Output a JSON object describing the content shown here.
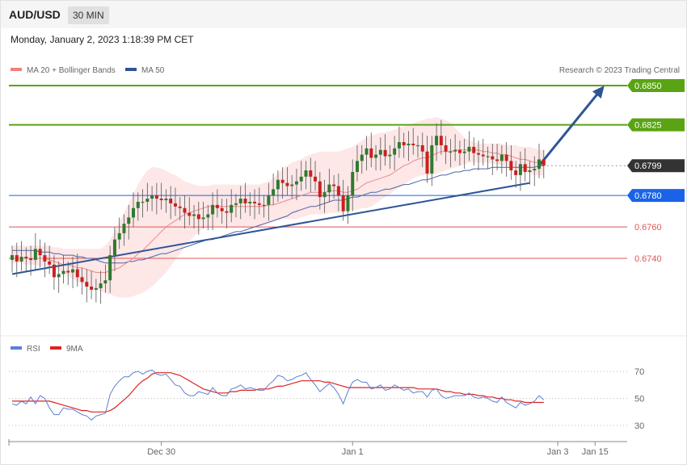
{
  "header": {
    "symbol": "AUD/USD",
    "timeframe": "30 MIN"
  },
  "datetime": "Monday, January 2, 2023 1:18:39 PM CET",
  "copyright": "Research © 2023 Trading Central",
  "colors": {
    "candle_up": "#2f7a2f",
    "candle_down": "#cc1f1f",
    "bollinger": "#fde3e3",
    "ma20": "#ee8a8a",
    "ma50": "#4a66a6",
    "resistance": "#5aa312",
    "support": "#1a63e8",
    "pivot": "#e05555",
    "current": "#333333",
    "trendline": "#2e5596",
    "rsi": "#5b7fd4",
    "rsi_ma": "#dd2222"
  },
  "chart_data": [
    {
      "type": "candlestick",
      "title": "",
      "ylim": [
        0.6722,
        0.6862
      ],
      "legend": [
        {
          "name": "MA 20 + Bollinger Bands",
          "color": "#f08080"
        },
        {
          "name": "MA 50",
          "color": "#2e5596"
        }
      ],
      "levels": [
        {
          "value": 0.685,
          "label": "0.6850",
          "kind": "resistance"
        },
        {
          "value": 0.6825,
          "label": "0.6825",
          "kind": "resistance"
        },
        {
          "value": 0.6799,
          "label": "0.6799",
          "kind": "current"
        },
        {
          "value": 0.678,
          "label": "0.6780",
          "kind": "support"
        },
        {
          "value": 0.676,
          "label": "0.6760",
          "kind": "pivot"
        },
        {
          "value": 0.674,
          "label": "0.6740",
          "kind": "pivot"
        }
      ],
      "trendline": {
        "start": [
          0,
          0.673
        ],
        "end": [
          111,
          0.6788
        ]
      },
      "projection": {
        "start": [
          113,
          0.6799
        ],
        "end": [
          127,
          0.685
        ]
      },
      "closes": [
        0.6742,
        0.6738,
        0.6741,
        0.674,
        0.6739,
        0.6746,
        0.6742,
        0.6738,
        0.6736,
        0.6728,
        0.673,
        0.6732,
        0.6731,
        0.6733,
        0.6728,
        0.6725,
        0.6722,
        0.672,
        0.6721,
        0.6724,
        0.6726,
        0.6742,
        0.6752,
        0.6756,
        0.6762,
        0.6766,
        0.6772,
        0.6776,
        0.6776,
        0.6778,
        0.678,
        0.6778,
        0.6777,
        0.6778,
        0.6775,
        0.6773,
        0.6772,
        0.6769,
        0.6767,
        0.6768,
        0.6765,
        0.6766,
        0.6768,
        0.6774,
        0.6772,
        0.677,
        0.6769,
        0.6774,
        0.6775,
        0.6778,
        0.6775,
        0.6776,
        0.6775,
        0.6774,
        0.6774,
        0.678,
        0.6784,
        0.679,
        0.6788,
        0.6786,
        0.6787,
        0.6789,
        0.6792,
        0.6796,
        0.6792,
        0.6789,
        0.6779,
        0.6782,
        0.6787,
        0.6786,
        0.678,
        0.677,
        0.678,
        0.6795,
        0.6802,
        0.6806,
        0.681,
        0.6804,
        0.6806,
        0.6809,
        0.6805,
        0.6806,
        0.681,
        0.6814,
        0.6812,
        0.6813,
        0.6812,
        0.6812,
        0.6808,
        0.6794,
        0.6812,
        0.6818,
        0.6812,
        0.6808,
        0.6808,
        0.6809,
        0.6807,
        0.6808,
        0.6811,
        0.6807,
        0.6806,
        0.6805,
        0.6805,
        0.6803,
        0.6802,
        0.6806,
        0.6802,
        0.6796,
        0.6793,
        0.68,
        0.6795,
        0.6796,
        0.6797,
        0.6803,
        0.6799
      ],
      "ma20": [
        0.674,
        0.674,
        0.674,
        0.674,
        0.674,
        0.674,
        0.674,
        0.674,
        0.6739,
        0.6738,
        0.6737,
        0.6736,
        0.6736,
        0.6735,
        0.6734,
        0.6734,
        0.6733,
        0.6732,
        0.6731,
        0.6731,
        0.6731,
        0.6732,
        0.6733,
        0.6734,
        0.6736,
        0.6738,
        0.674,
        0.6743,
        0.6745,
        0.6748,
        0.6751,
        0.6754,
        0.6757,
        0.676,
        0.6762,
        0.6764,
        0.6766,
        0.6768,
        0.6769,
        0.677,
        0.6771,
        0.6772,
        0.6773,
        0.6773,
        0.6773,
        0.6773,
        0.6773,
        0.6773,
        0.6773,
        0.6773,
        0.6773,
        0.6773,
        0.6773,
        0.6773,
        0.6773,
        0.6774,
        0.6774,
        0.6775,
        0.6776,
        0.6777,
        0.6778,
        0.6779,
        0.678,
        0.6781,
        0.6782,
        0.6782,
        0.6782,
        0.6782,
        0.6783,
        0.6783,
        0.6783,
        0.6782,
        0.6782,
        0.6783,
        0.6784,
        0.6786,
        0.6788,
        0.6789,
        0.679,
        0.6791,
        0.6792,
        0.6793,
        0.6795,
        0.6797,
        0.6799,
        0.68,
        0.6802,
        0.6803,
        0.6804,
        0.6804,
        0.6805,
        0.6807,
        0.6808,
        0.6808,
        0.6808,
        0.6809,
        0.6809,
        0.6809,
        0.6809,
        0.6809,
        0.6809,
        0.6808,
        0.6808,
        0.6807,
        0.6807,
        0.6806,
        0.6806,
        0.6805,
        0.6804,
        0.6803,
        0.6803,
        0.6802,
        0.6801,
        0.6801,
        0.6801
      ],
      "ma50": [
        0.6745,
        0.6745,
        0.6745,
        0.6745,
        0.6745,
        0.6745,
        0.6744,
        0.6744,
        0.6744,
        0.6743,
        0.6743,
        0.6742,
        0.6742,
        0.6742,
        0.6741,
        0.6741,
        0.674,
        0.674,
        0.6739,
        0.6738,
        0.6737,
        0.6737,
        0.6737,
        0.6737,
        0.6737,
        0.6738,
        0.6738,
        0.6739,
        0.6739,
        0.674,
        0.6741,
        0.6742,
        0.6743,
        0.6743,
        0.6744,
        0.6745,
        0.6746,
        0.6747,
        0.6748,
        0.6749,
        0.675,
        0.6751,
        0.6752,
        0.6752,
        0.6753,
        0.6754,
        0.6755,
        0.6756,
        0.6757,
        0.6757,
        0.6758,
        0.6759,
        0.676,
        0.6761,
        0.6762,
        0.6763,
        0.6764,
        0.6765,
        0.6766,
        0.6767,
        0.6769,
        0.677,
        0.6771,
        0.6772,
        0.6773,
        0.6773,
        0.6774,
        0.6775,
        0.6776,
        0.6777,
        0.6777,
        0.6777,
        0.6778,
        0.6779,
        0.6779,
        0.678,
        0.6781,
        0.6782,
        0.6782,
        0.6783,
        0.6784,
        0.6784,
        0.6785,
        0.6786,
        0.6787,
        0.6787,
        0.6788,
        0.6789,
        0.679,
        0.679,
        0.6791,
        0.6792,
        0.6793,
        0.6793,
        0.6794,
        0.6795,
        0.6795,
        0.6796,
        0.6796,
        0.6797,
        0.6797,
        0.6797,
        0.6797,
        0.6798,
        0.6798,
        0.6798,
        0.6798,
        0.6798,
        0.6798,
        0.6798,
        0.6798,
        0.6798,
        0.6798,
        0.6799,
        0.6799
      ],
      "bb_upper": [
        0.6748,
        0.6748,
        0.6748,
        0.6748,
        0.6748,
        0.6748,
        0.6748,
        0.6748,
        0.6748,
        0.6747,
        0.6747,
        0.6746,
        0.6746,
        0.6746,
        0.6746,
        0.6746,
        0.6746,
        0.6746,
        0.6746,
        0.6746,
        0.6748,
        0.6752,
        0.6757,
        0.6763,
        0.6769,
        0.6775,
        0.6781,
        0.6787,
        0.6792,
        0.6796,
        0.6798,
        0.6798,
        0.6797,
        0.6796,
        0.6794,
        0.6793,
        0.6791,
        0.6789,
        0.6788,
        0.6787,
        0.6786,
        0.6786,
        0.6786,
        0.6787,
        0.6787,
        0.6787,
        0.6787,
        0.6787,
        0.6787,
        0.6787,
        0.6787,
        0.6787,
        0.6787,
        0.6787,
        0.6788,
        0.6789,
        0.6791,
        0.6794,
        0.6797,
        0.6799,
        0.6801,
        0.6802,
        0.6803,
        0.6805,
        0.6806,
        0.6807,
        0.6808,
        0.6808,
        0.6808,
        0.6808,
        0.6808,
        0.6809,
        0.681,
        0.6811,
        0.6813,
        0.6815,
        0.6817,
        0.6818,
        0.6819,
        0.682,
        0.682,
        0.6821,
        0.6822,
        0.6823,
        0.6824,
        0.6825,
        0.6826,
        0.6827,
        0.6828,
        0.6829,
        0.6829,
        0.683,
        0.6829,
        0.6828,
        0.6826,
        0.6823,
        0.682,
        0.6817,
        0.6815,
        0.6814,
        0.6813,
        0.6813,
        0.6813,
        0.6813,
        0.6813,
        0.6813,
        0.6812,
        0.6812,
        0.6812,
        0.6811,
        0.6811,
        0.6811,
        0.681,
        0.6809,
        0.6809
      ],
      "bb_lower": [
        0.6737,
        0.6737,
        0.6737,
        0.6736,
        0.6736,
        0.6736,
        0.6735,
        0.6735,
        0.6734,
        0.6733,
        0.6732,
        0.6731,
        0.6729,
        0.6727,
        0.6725,
        0.6724,
        0.6722,
        0.6721,
        0.672,
        0.6719,
        0.6718,
        0.6717,
        0.6716,
        0.6715,
        0.6715,
        0.6715,
        0.6716,
        0.6717,
        0.6718,
        0.672,
        0.6722,
        0.6725,
        0.6728,
        0.6731,
        0.6735,
        0.6739,
        0.6743,
        0.6747,
        0.6751,
        0.6754,
        0.6757,
        0.6759,
        0.676,
        0.676,
        0.676,
        0.676,
        0.676,
        0.676,
        0.676,
        0.676,
        0.676,
        0.676,
        0.676,
        0.676,
        0.6761,
        0.6762,
        0.6763,
        0.6764,
        0.6765,
        0.6765,
        0.6765,
        0.6765,
        0.6766,
        0.6767,
        0.6768,
        0.6768,
        0.6768,
        0.6768,
        0.6769,
        0.6769,
        0.6769,
        0.6769,
        0.677,
        0.6771,
        0.6771,
        0.6772,
        0.6772,
        0.6773,
        0.6775,
        0.6777,
        0.6779,
        0.6781,
        0.6783,
        0.6785,
        0.6787,
        0.6789,
        0.6791,
        0.6792,
        0.6793,
        0.6793,
        0.6793,
        0.6794,
        0.6795,
        0.6796,
        0.6797,
        0.6798,
        0.6799,
        0.68,
        0.6801,
        0.6801,
        0.6801,
        0.6801,
        0.6801,
        0.68,
        0.68,
        0.6799,
        0.6799,
        0.6798,
        0.6797,
        0.6796,
        0.6795,
        0.6794,
        0.6793,
        0.6793,
        0.6793
      ]
    },
    {
      "type": "line",
      "title": "",
      "ylim": [
        22,
        78
      ],
      "ticks": [
        70,
        50,
        30
      ],
      "tick_labels": [
        "70",
        "50",
        "30"
      ],
      "legend": [
        {
          "name": "RSI",
          "color": "#5b7fd4"
        },
        {
          "name": "9MA",
          "color": "#dd2222"
        }
      ],
      "rsi": [
        46,
        45,
        48,
        46,
        51,
        46,
        52,
        50,
        43,
        38,
        38,
        43,
        42,
        42,
        40,
        38,
        37,
        34,
        37,
        38,
        39,
        53,
        59,
        63,
        66,
        66,
        69,
        70,
        68,
        70,
        71,
        68,
        67,
        68,
        64,
        60,
        59,
        54,
        52,
        52,
        55,
        54,
        53,
        58,
        54,
        52,
        52,
        57,
        58,
        60,
        57,
        58,
        57,
        56,
        56,
        60,
        63,
        67,
        66,
        63,
        64,
        66,
        67,
        69,
        64,
        60,
        55,
        58,
        61,
        58,
        53,
        46,
        55,
        62,
        64,
        62,
        62,
        57,
        58,
        60,
        56,
        57,
        60,
        58,
        56,
        57,
        54,
        55,
        55,
        51,
        56,
        57,
        52,
        50,
        51,
        52,
        52,
        52,
        54,
        51,
        50,
        51,
        50,
        48,
        47,
        51,
        47,
        45,
        43,
        47,
        45,
        46,
        48,
        52,
        49
      ],
      "rsi_ma": [
        48,
        48,
        48,
        48,
        48,
        48,
        48,
        48,
        48,
        47,
        46,
        45,
        44,
        43,
        42,
        41,
        41,
        40,
        40,
        40,
        40,
        41,
        43,
        46,
        49,
        52,
        56,
        60,
        63,
        65,
        68,
        69,
        69,
        69,
        69,
        68,
        67,
        65,
        63,
        61,
        59,
        57,
        56,
        55,
        54,
        54,
        54,
        55,
        55,
        56,
        56,
        56,
        56,
        57,
        57,
        57,
        58,
        59,
        59,
        60,
        61,
        62,
        63,
        63,
        63,
        63,
        63,
        62,
        62,
        61,
        60,
        59,
        58,
        58,
        58,
        58,
        58,
        58,
        58,
        58,
        58,
        58,
        58,
        58,
        58,
        58,
        58,
        57,
        57,
        57,
        57,
        57,
        56,
        55,
        55,
        54,
        54,
        53,
        53,
        53,
        52,
        52,
        51,
        51,
        50,
        50,
        49,
        49,
        48,
        48,
        47,
        47,
        47,
        47,
        47
      ]
    }
  ],
  "x_axis": {
    "labels": [
      {
        "text": "Dec 30",
        "index": 32
      },
      {
        "text": "Jan 1",
        "index": 73
      },
      {
        "text": "Jan 3",
        "index": 117
      },
      {
        "text": "Jan 15",
        "index": 125
      }
    ]
  }
}
